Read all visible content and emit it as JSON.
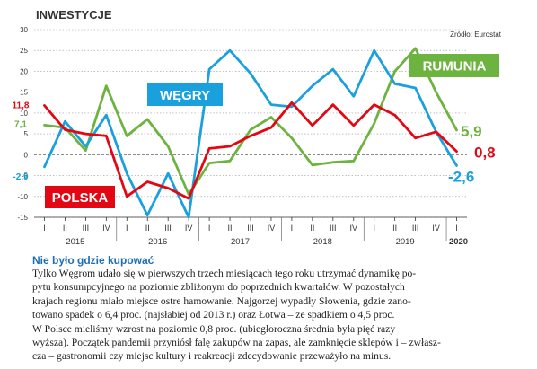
{
  "chart_data": {
    "type": "line",
    "title": "INWESTYCJE",
    "source": "Źródło: Eurostat",
    "y_ticks": [
      30,
      25,
      20,
      15,
      10,
      5,
      0,
      -5,
      -10,
      -15
    ],
    "ylim": [
      -15,
      30
    ],
    "x_quarters": [
      "I",
      "II",
      "III",
      "IV",
      "I",
      "II",
      "III",
      "IV",
      "I",
      "II",
      "III",
      "IV",
      "I",
      "II",
      "III",
      "IV",
      "I",
      "II",
      "III",
      "IV",
      "I"
    ],
    "year_labels": [
      {
        "label": "2015",
        "index": 1.5
      },
      {
        "label": "2016",
        "index": 5.5
      },
      {
        "label": "2017",
        "index": 9.5
      },
      {
        "label": "2018",
        "index": 13.5
      },
      {
        "label": "2019",
        "index": 17.5
      },
      {
        "label": "2020",
        "index": 20
      }
    ],
    "x_step": 2,
    "series": [
      {
        "name": "Rumunia",
        "color": "#6db33f",
        "values": [
          7.1,
          6.5,
          1.0,
          16.5,
          4.5,
          8.5,
          2.0,
          -9.5,
          -2.0,
          -1.5,
          6.0,
          9.0,
          4.0,
          -2.5,
          -1.8,
          -1.5,
          7.5,
          20.0,
          25.5,
          15.0,
          5.9
        ],
        "start_label": "7,1",
        "end_label": "5,9"
      },
      {
        "name": "Węgry",
        "color": "#1aa0dc",
        "values": [
          -2.9,
          8.0,
          2.0,
          9.5,
          -4.5,
          -14.5,
          -4.5,
          -15.0,
          20.5,
          25.0,
          19.5,
          12.0,
          11.5,
          16.5,
          20.5,
          14.0,
          25.0,
          17.0,
          16.0,
          5.5,
          -2.6
        ],
        "start_label": "-2,9",
        "end_label": "-2,6"
      },
      {
        "name": "Polska",
        "color": "#e30613",
        "values": [
          11.8,
          6.0,
          5.0,
          4.5,
          -10.0,
          -6.5,
          -8.0,
          -10.5,
          1.5,
          2.0,
          4.5,
          6.5,
          12.5,
          7.0,
          12.0,
          7.0,
          12.0,
          9.5,
          4.0,
          5.5,
          0.8
        ],
        "start_label": "11,8",
        "end_label": "0,8"
      }
    ]
  },
  "caption": {
    "title": "Nie było gdzie kupować",
    "lines": [
      "Tylko Węgrom udało się w pierwszych trzech miesiącach tego roku utrzymać dynamikę po-",
      "pytu konsumpcyjnego na poziomie zbliżonym do poprzednich kwartałów. W pozostałych",
      "krajach regionu miało miejsce ostre hamowanie. Najgorzej wypadły Słowenia, gdzie zano-",
      "towano spadek o 6,4 proc. (najsłabiej od 2013 r.) oraz Łotwa – ze spadkiem o 4,5 proc.",
      "W Polsce mieliśmy wzrost na poziomie 0,8 proc. (ubiegłoroczna średnia była pięć razy",
      "wyższa). Początek pandemii przyniósł falę zakupów na zapas, ale zamknięcie sklepów i – zwłasz-",
      "cza – gastronomii czy miejsc kultury i reakreacji zdecydowanie przeważyło na minus."
    ]
  }
}
